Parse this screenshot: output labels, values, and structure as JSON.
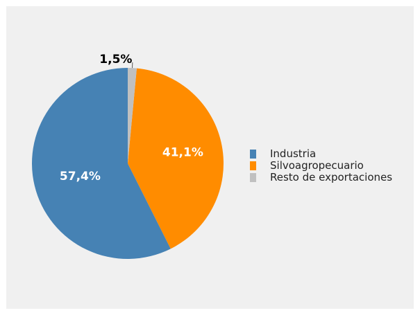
{
  "chart_data": {
    "type": "pie",
    "categories": [
      "Industria",
      "Silvoagropecuario",
      "Resto de exportaciones"
    ],
    "values": [
      57.4,
      41.1,
      1.5
    ],
    "labels": [
      "57,4%",
      "41,1%",
      "1,5%"
    ],
    "colors": [
      "#4682b4",
      "#ff8c00",
      "#c0c0c0"
    ],
    "label_colors": [
      "#ffffff",
      "#ffffff",
      "#000000"
    ],
    "title": "",
    "legend_position": "right"
  }
}
